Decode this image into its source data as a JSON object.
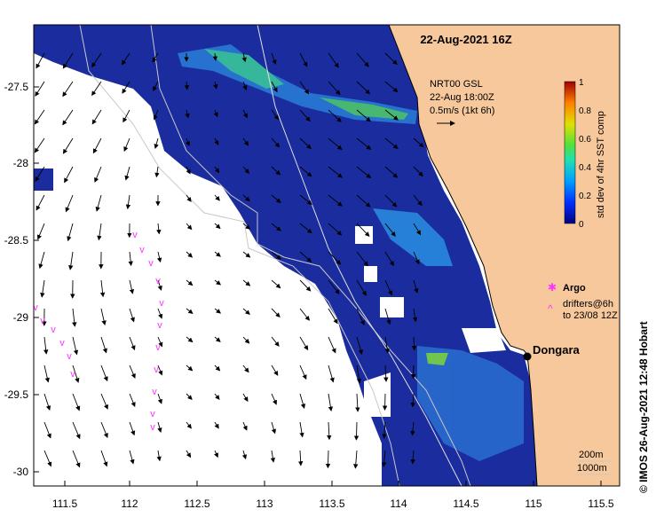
{
  "map": {
    "title": "22-Aug-2021 16Z",
    "credit": "© IMOS 26-Aug-2021 12:48 Hobart",
    "wind": {
      "line1": "NRT00 GSL",
      "line2": "22-Aug 18:00Z",
      "line3": "0.5m/s (1kt 6h)"
    },
    "colorbar": {
      "label": "std dev of 4hr SST comp",
      "ticks": [
        "0",
        "0.2",
        "0.4",
        "0.6",
        "0.8",
        "1"
      ]
    },
    "legend": {
      "argo": "Argo",
      "drifters1": "drifters@6h",
      "drifters2": "to 23/08 12Z"
    },
    "place": "Dongara",
    "bathy": {
      "a": "200m",
      "b": "1000m"
    },
    "lon_ticks": [
      "111.5",
      "112",
      "112.5",
      "113",
      "113.5",
      "114",
      "114.5",
      "115",
      "115.5"
    ],
    "lat_ticks": [
      "-27.5",
      "-28",
      "-28.5",
      "-29",
      "-29.5",
      "-30"
    ],
    "colors": {
      "land": "#f7c89c",
      "ocean_data": "#1c2fa6",
      "drifter": "#ff33ff"
    }
  }
}
